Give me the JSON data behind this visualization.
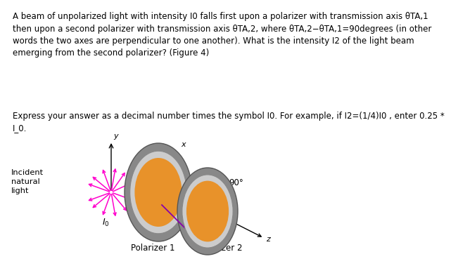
{
  "text_lines": "A beam of unpolarized light with intensity I0 falls first upon a polarizer with transmission axis θTA,1\nthen upon a second polarizer with transmission axis θTA,2, where θTA,2−θTA,1=90degrees (in other\nwords the two axes are perpendicular to one another). What is the intensity I2 of the light beam\nemerging from the second polarizer? (Figure 4)",
  "text2_lines": "Express your answer as a decimal number times the symbol I0. For example, if I2=(1/4)I0 , enter 0.25 *\nI_0.",
  "incident_label": "Incident\nnatural\nlight",
  "pol1_label": "Polarizer 1",
  "pol2_label": "Polarizer 2",
  "I0_label": "$I_0$",
  "angle_label": "90°",
  "x_label": "x",
  "y_label": "y",
  "z_label": "z",
  "bg_color": "#ffffff",
  "text_color": "#000000",
  "arrow_color": "#ff00cc",
  "font_size": 8.5
}
